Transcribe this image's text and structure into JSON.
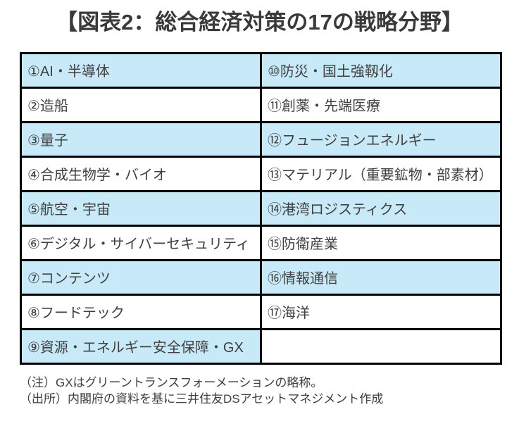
{
  "title": "【図表2：総合経済対策の17の戦略分野】",
  "colors": {
    "shaded_row_bg": "#c8e9f8",
    "table_border": "#000000",
    "text": "#404040",
    "title_text": "#3a3a3a"
  },
  "table": {
    "rows": [
      {
        "cells": [
          {
            "text": "①AI・半導体",
            "shaded": true
          },
          {
            "text": "⑩防災・国土強靱化",
            "shaded": true
          }
        ]
      },
      {
        "cells": [
          {
            "text": "②造船",
            "shaded": false
          },
          {
            "text": "⑪創薬・先端医療",
            "shaded": false
          }
        ]
      },
      {
        "cells": [
          {
            "text": "③量子",
            "shaded": true
          },
          {
            "text": "⑫フュージョンエネルギー",
            "shaded": true
          }
        ]
      },
      {
        "cells": [
          {
            "text": "④合成生物学・バイオ",
            "shaded": false
          },
          {
            "text": "⑬マテリアル（重要鉱物・部素材）",
            "shaded": false
          }
        ]
      },
      {
        "cells": [
          {
            "text": "⑤航空・宇宙",
            "shaded": true
          },
          {
            "text": "⑭港湾ロジスティクス",
            "shaded": true
          }
        ]
      },
      {
        "cells": [
          {
            "text": "⑥デジタル・サイバーセキュリティ",
            "shaded": false
          },
          {
            "text": "⑮防衛産業",
            "shaded": false
          }
        ]
      },
      {
        "cells": [
          {
            "text": "⑦コンテンツ",
            "shaded": true
          },
          {
            "text": "⑯情報通信",
            "shaded": true
          }
        ]
      },
      {
        "cells": [
          {
            "text": "⑧フードテック",
            "shaded": false
          },
          {
            "text": "⑰海洋",
            "shaded": false
          }
        ]
      },
      {
        "cells": [
          {
            "text": "⑨資源・エネルギー安全保障・GX",
            "shaded": true
          },
          {
            "text": "",
            "shaded": false
          }
        ]
      }
    ]
  },
  "notes": {
    "note": "（注）GXはグリーントランスフォーメーションの略称。",
    "source": "（出所）内閣府の資料を基に三井住友DSアセットマネジメント作成"
  }
}
